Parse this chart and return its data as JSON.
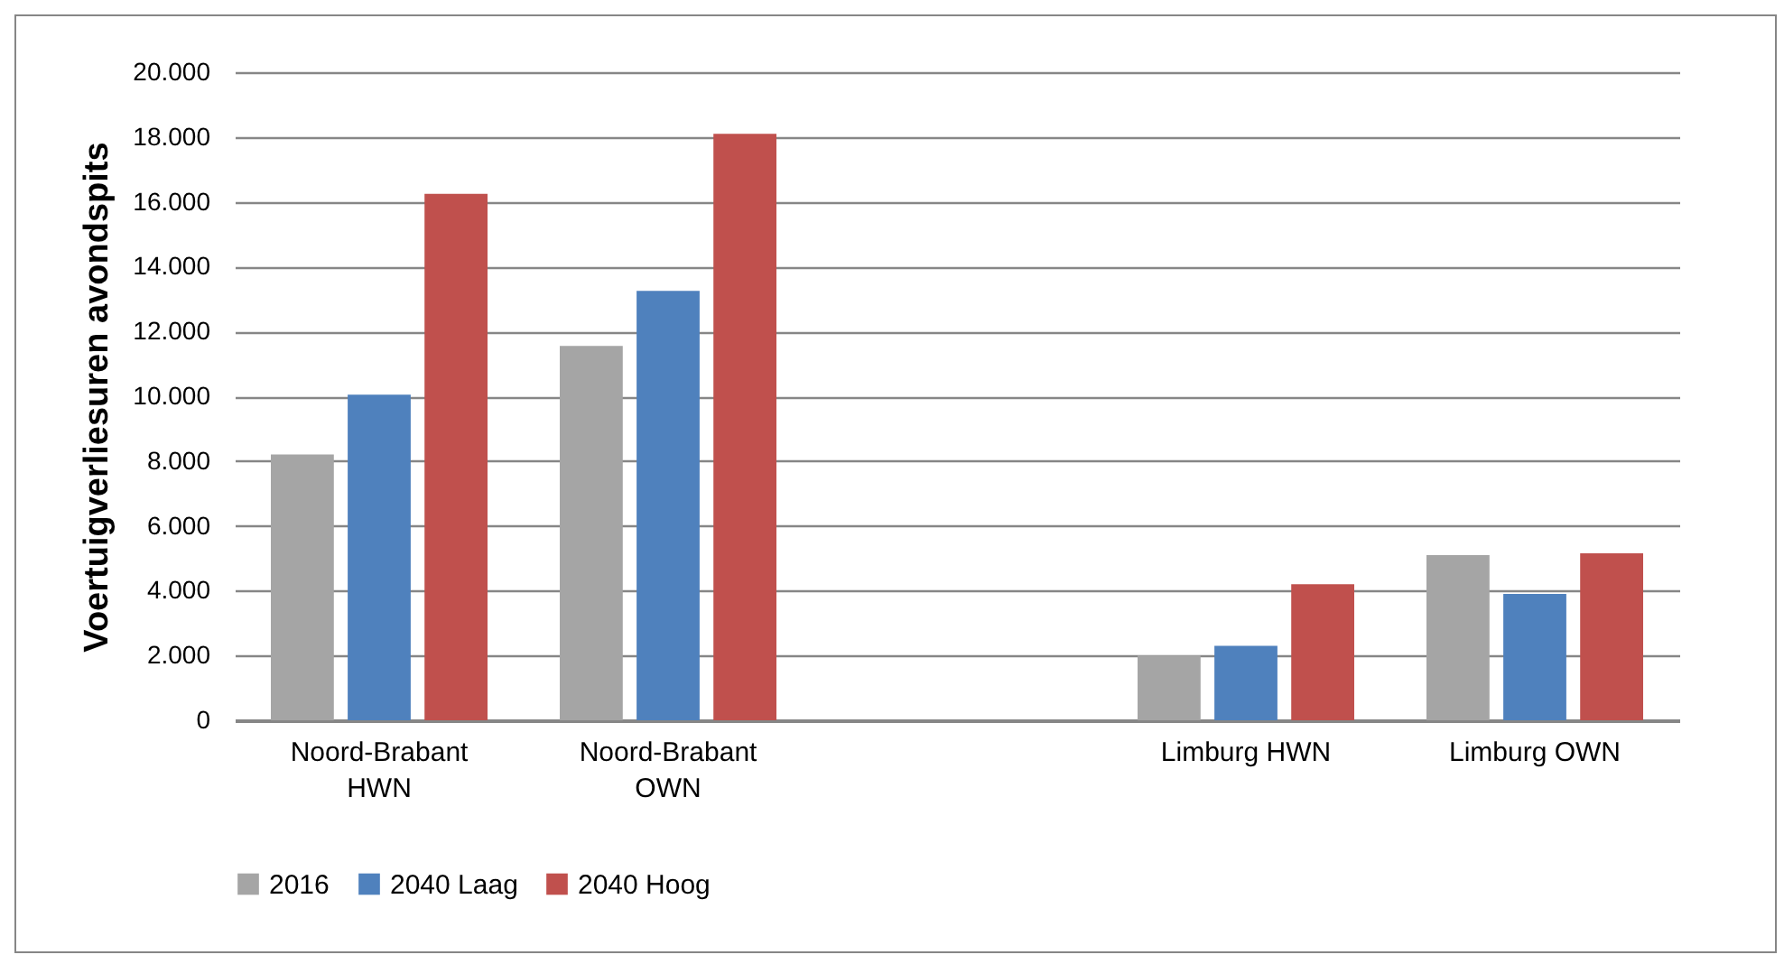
{
  "chart_data": {
    "type": "bar",
    "ylabel": "Voertuigverliesuren avondspits",
    "categories": [
      "Noord-Brabant HWN",
      "Noord-Brabant OWN",
      null,
      "Limburg HWN",
      "Limburg OWN"
    ],
    "series": [
      {
        "name": "2016",
        "color": "#a5a5a5",
        "values": [
          8200,
          11550,
          null,
          2000,
          5100
        ]
      },
      {
        "name": "2040 Laag",
        "color": "#4f81bd",
        "values": [
          10050,
          13250,
          null,
          2300,
          3900
        ]
      },
      {
        "name": "2040 Hoog",
        "color": "#c0504d",
        "values": [
          16250,
          18100,
          null,
          4200,
          5150
        ]
      }
    ],
    "ylim": [
      0,
      20000
    ],
    "yticks": [
      0,
      {
        "value": 2000,
        "label": "2.000"
      },
      {
        "value": 4000,
        "label": "4.000"
      },
      {
        "value": 6000,
        "label": "6.000"
      },
      {
        "value": 8000,
        "label": "8.000"
      },
      {
        "value": 10000,
        "label": "10.000"
      },
      {
        "value": 12000,
        "label": "12.000"
      },
      {
        "value": 14000,
        "label": "14.000"
      },
      {
        "value": 16000,
        "label": "16.000"
      },
      {
        "value": 18000,
        "label": "18.000"
      },
      {
        "value": 20000,
        "label": "20.000"
      }
    ],
    "grid": "y",
    "legend": "bottom"
  }
}
